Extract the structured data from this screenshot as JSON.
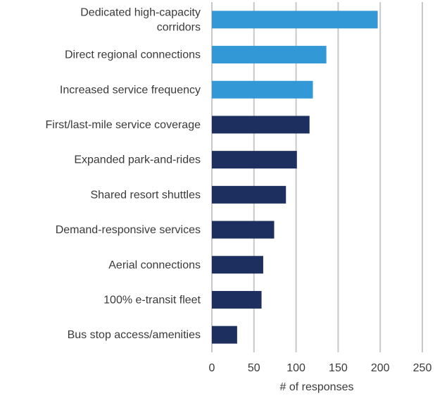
{
  "chart_data": {
    "type": "bar",
    "orientation": "horizontal",
    "categories": [
      [
        "Dedicated high-capacity",
        "corridors"
      ],
      [
        "Direct regional connections"
      ],
      [
        "Increased service frequency"
      ],
      [
        "First/last-mile service coverage"
      ],
      [
        "Expanded park-and-rides"
      ],
      [
        "Shared resort shuttles"
      ],
      [
        "Demand-responsive services"
      ],
      [
        "Aerial connections"
      ],
      [
        "100% e-transit fleet"
      ],
      [
        "Bus stop access/amenities"
      ]
    ],
    "values": [
      197,
      136,
      120,
      116,
      101,
      88,
      74,
      61,
      59,
      30
    ],
    "bar_colors": [
      "#3399d6",
      "#3399d6",
      "#3399d6",
      "#1c2f5f",
      "#1c2f5f",
      "#1c2f5f",
      "#1c2f5f",
      "#1c2f5f",
      "#1c2f5f",
      "#1c2f5f"
    ],
    "xlabel": "# of responses",
    "xlim": [
      0,
      250
    ],
    "xticks": [
      0,
      50,
      100,
      150,
      200,
      250
    ],
    "grid": "vertical"
  }
}
